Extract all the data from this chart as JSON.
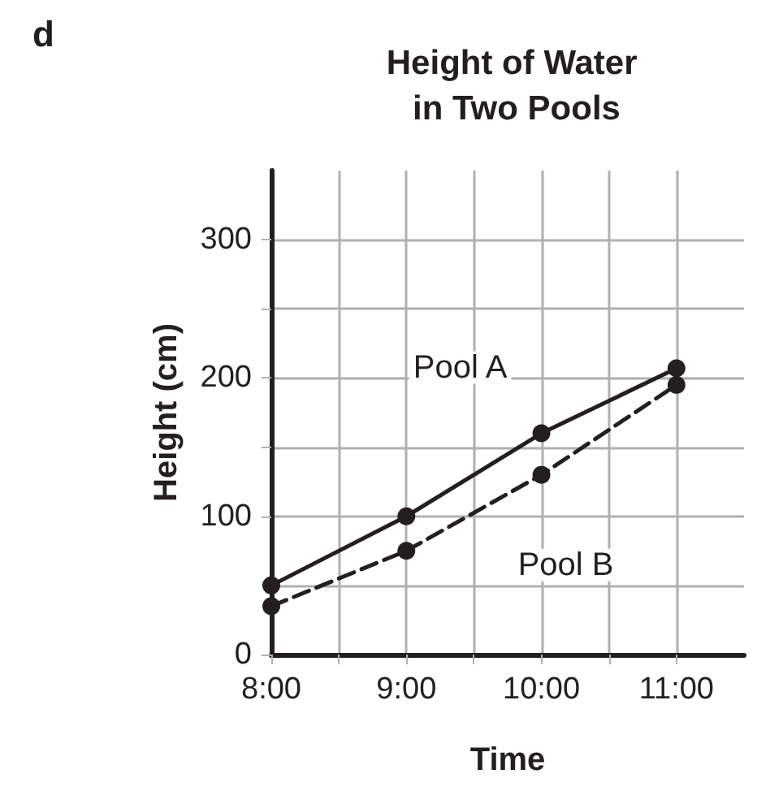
{
  "chart_data": {
    "type": "line",
    "title": "Height of Water in Two Pools",
    "xlabel": "Time",
    "ylabel": "Height (cm)",
    "x": [
      8,
      9,
      10,
      11
    ],
    "series": [
      {
        "name": "Pool A",
        "color": "#231f20",
        "line_style": "solid",
        "values": [
          50,
          100,
          160,
          207
        ]
      },
      {
        "name": "Pool B",
        "color": "#231f20",
        "line_style": "dashed",
        "values": [
          35,
          75,
          130,
          195
        ]
      }
    ],
    "xlim": [
      8,
      11.5
    ],
    "xticks": [
      {
        "value": 8,
        "label": "8:00"
      },
      {
        "value": 8.5,
        "label": null
      },
      {
        "value": 9,
        "label": "9:00"
      },
      {
        "value": 9.5,
        "label": null
      },
      {
        "value": 10,
        "label": "10:00"
      },
      {
        "value": 10.5,
        "label": null
      },
      {
        "value": 11,
        "label": "11:00"
      }
    ],
    "ylim": [
      0,
      350
    ],
    "yticks": [
      0,
      {
        "value": 50,
        "label": null
      },
      100,
      {
        "value": 150,
        "label": null
      },
      200,
      {
        "value": 250,
        "label": null
      },
      300
    ],
    "grid": true,
    "marker": "circle",
    "annotations": [
      "d"
    ]
  }
}
